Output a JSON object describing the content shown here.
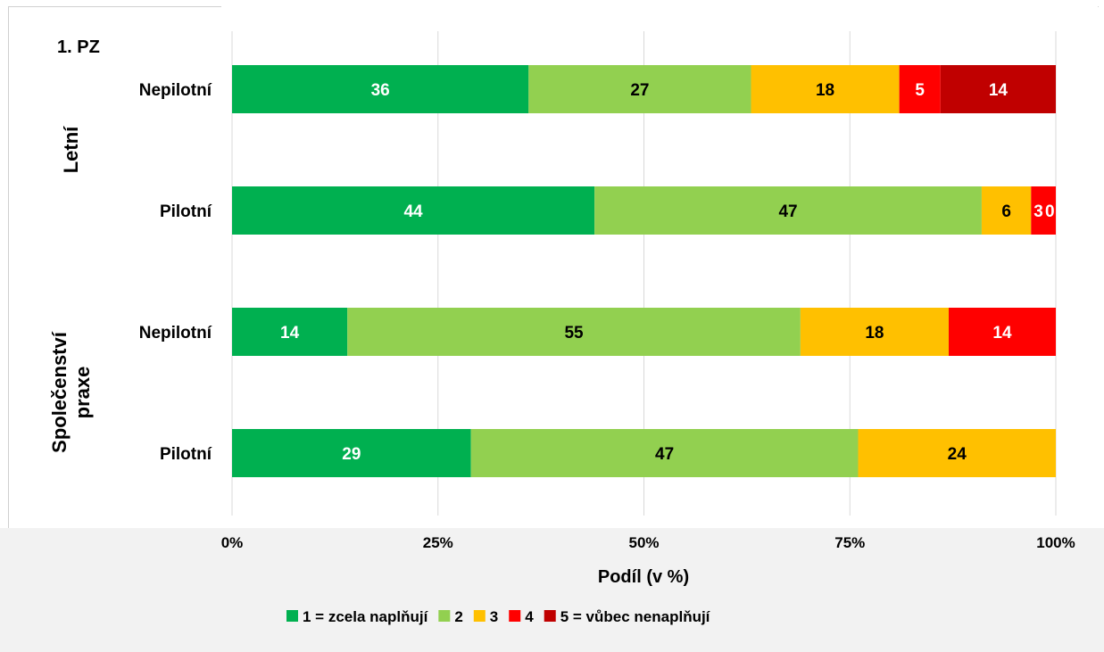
{
  "chart_data": {
    "type": "bar",
    "orientation": "horizontal",
    "stacked": true,
    "panel_label": "1. PZ",
    "xlabel": "Podíl (v %)",
    "xlim": [
      0,
      100
    ],
    "x_ticks": [
      "0%",
      "25%",
      "50%",
      "75%",
      "100%"
    ],
    "grid": true,
    "legend_position": "bottom",
    "groups": [
      {
        "name": "Letní",
        "name_lines": [
          "Letní"
        ]
      },
      {
        "name": "Společenství praxe",
        "name_lines": [
          "Společenství",
          "praxe"
        ]
      }
    ],
    "categories": [
      {
        "group": 0,
        "label": "Nepilotní"
      },
      {
        "group": 0,
        "label": "Pilotní"
      },
      {
        "group": 1,
        "label": "Nepilotní"
      },
      {
        "group": 1,
        "label": "Pilotní"
      }
    ],
    "series": [
      {
        "name": "1 = zcela naplňují",
        "color": "#00b050",
        "label_color": "#ffffff",
        "values": [
          36,
          44,
          14,
          29
        ]
      },
      {
        "name": "2",
        "color": "#92d050",
        "label_color": "#000000",
        "values": [
          27,
          47,
          55,
          47
        ]
      },
      {
        "name": "3",
        "color": "#ffc000",
        "label_color": "#000000",
        "values": [
          18,
          6,
          18,
          24
        ]
      },
      {
        "name": "4",
        "color": "#ff0000",
        "label_color": "#ffffff",
        "values": [
          5,
          3,
          14,
          0
        ]
      },
      {
        "name": "5 = vůbec nenaplňují",
        "color": "#c00000",
        "label_color": "#ffffff",
        "values": [
          14,
          0,
          0,
          0
        ]
      }
    ],
    "data_labels": [
      [
        "36",
        "27",
        "18",
        "5",
        "14"
      ],
      [
        "44",
        "47",
        "6",
        "3",
        "0"
      ],
      [
        "14",
        "55",
        "18",
        "14",
        ""
      ],
      [
        "29",
        "47",
        "24",
        "",
        ""
      ]
    ]
  }
}
